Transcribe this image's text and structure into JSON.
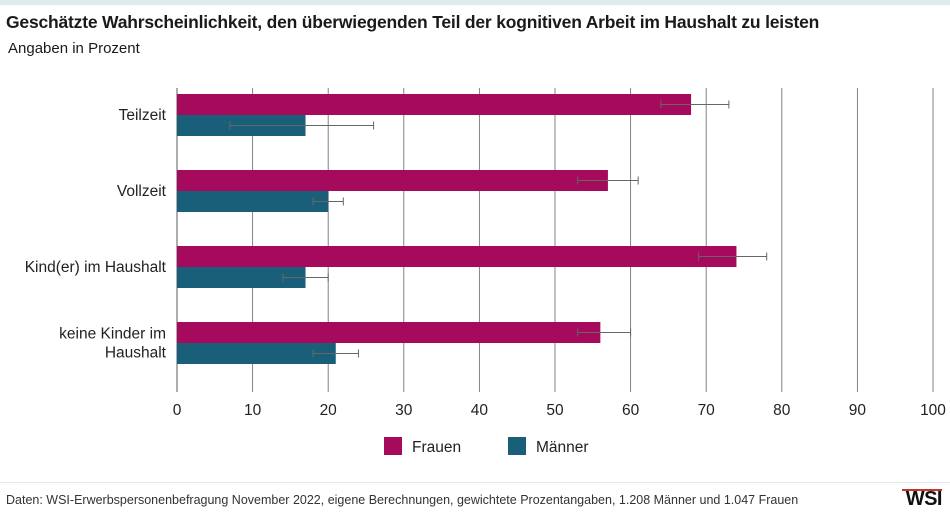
{
  "title": "Geschätzte Wahrscheinlichkeit, den überwiegenden Teil der kognitiven Arbeit im Haushalt zu leisten",
  "subtitle": "Angaben in Prozent",
  "source": "Daten: WSI-Erwerbspersonenbefragung November 2022, eigene Berechnungen, gewichtete Prozentangaben, 1.208 Männer und 1.047 Frauen",
  "logo": "WSI",
  "colors": {
    "frauen": "#a50a5c",
    "maenner": "#1a5f7a",
    "grid": "#777777",
    "errorbar": "#666666"
  },
  "chart_data": {
    "type": "bar",
    "orientation": "horizontal",
    "title": "Geschätzte Wahrscheinlichkeit, den überwiegenden Teil der kognitiven Arbeit im Haushalt zu leisten",
    "subtitle": "Angaben in Prozent",
    "categories": [
      "Teilzeit",
      "Vollzeit",
      "Kind(er) im Haushalt",
      "keine Kinder im Haushalt"
    ],
    "category_lines": [
      [
        "Teilzeit"
      ],
      [
        "Vollzeit"
      ],
      [
        "Kind(er) im Haushalt"
      ],
      [
        "keine Kinder im",
        "Haushalt"
      ]
    ],
    "xlim": [
      0,
      100
    ],
    "xticks": [
      0,
      10,
      20,
      30,
      40,
      50,
      60,
      70,
      80,
      90,
      100
    ],
    "grid": true,
    "legend_position": "bottom",
    "series": [
      {
        "name": "Frauen",
        "color": "#a50a5c",
        "values": [
          68,
          57,
          74,
          56
        ],
        "error_low": [
          64,
          53,
          69,
          53
        ],
        "error_high": [
          73,
          61,
          78,
          60
        ]
      },
      {
        "name": "Männer",
        "color": "#1a5f7a",
        "values": [
          17,
          20,
          17,
          21
        ],
        "error_low": [
          7,
          18,
          14,
          18
        ],
        "error_high": [
          26,
          22,
          20,
          24
        ]
      }
    ]
  }
}
